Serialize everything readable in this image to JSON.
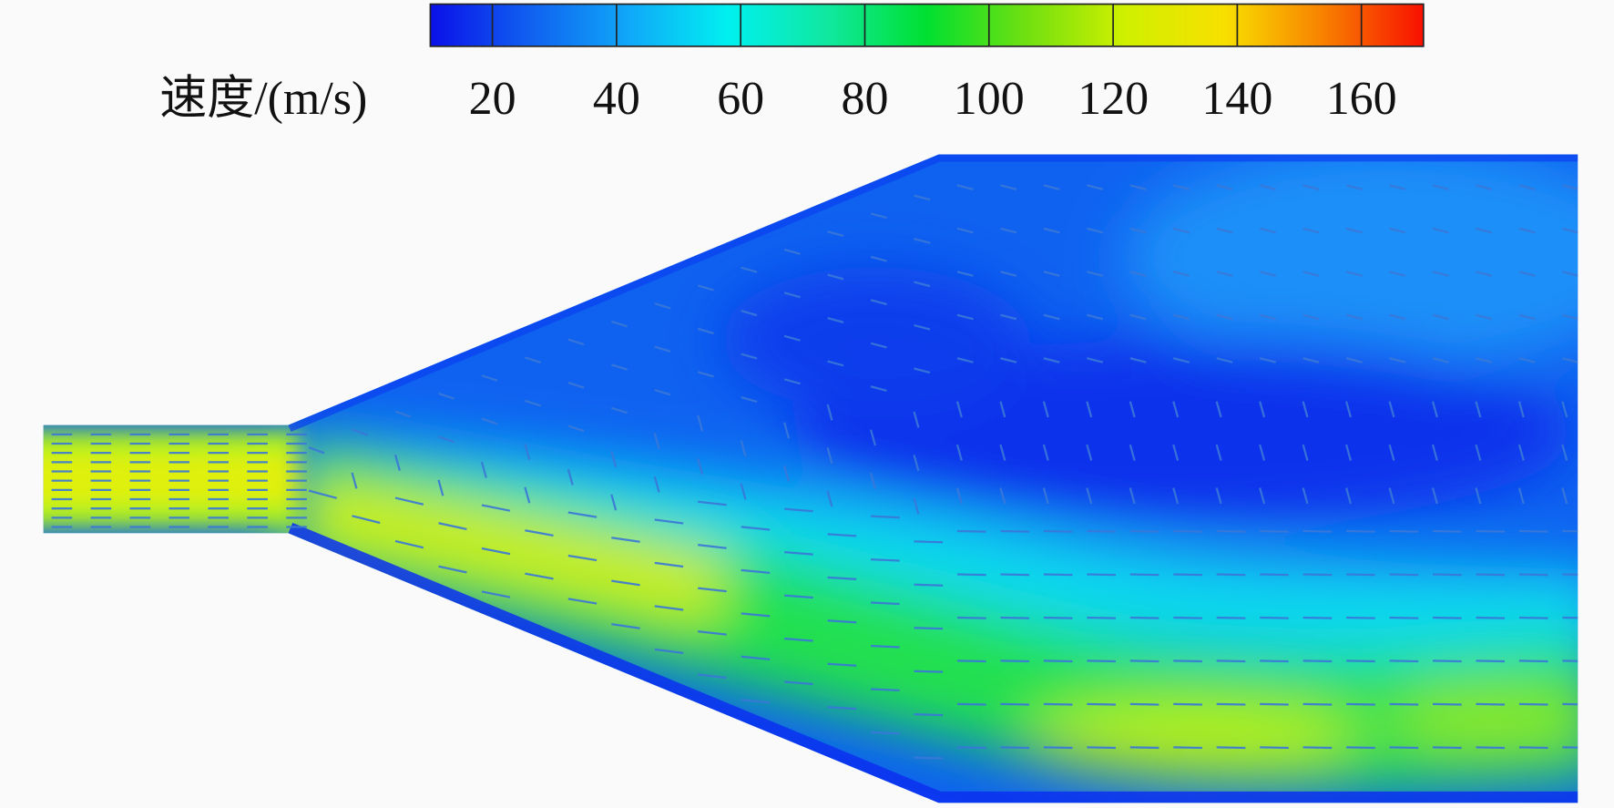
{
  "chart_data": {
    "type": "contour",
    "colorbar_label": "速度/(m/s)",
    "clim": [
      10,
      170
    ],
    "cticks": [
      20,
      40,
      60,
      80,
      100,
      120,
      140,
      160
    ],
    "colormap": [
      "#0a10e8",
      "#1060f0",
      "#10a8f8",
      "#00f0f0",
      "#10e8a0",
      "#00e030",
      "#70e010",
      "#d0f000",
      "#f8e000",
      "#f88000",
      "#f81000"
    ]
  }
}
